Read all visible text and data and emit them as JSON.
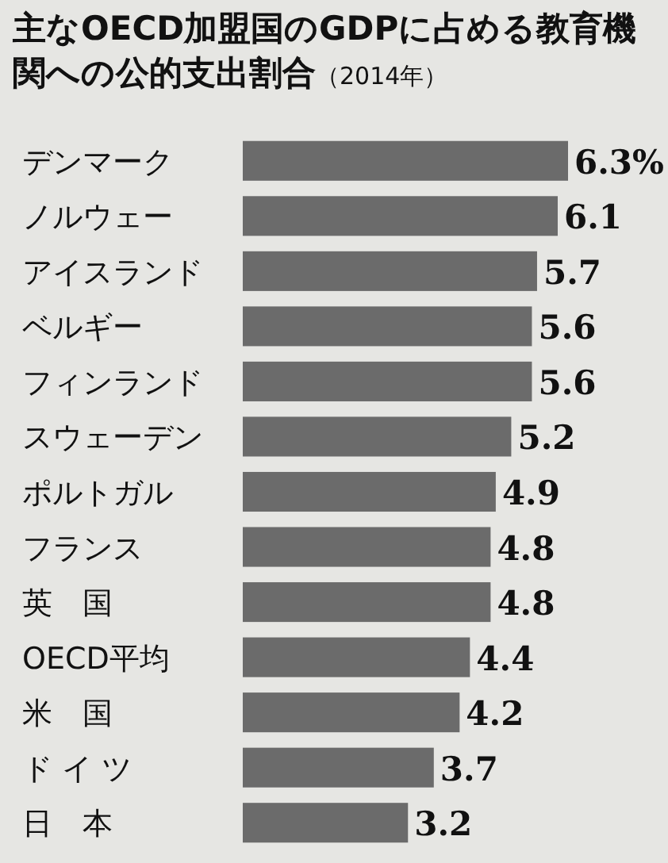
{
  "chart_data": {
    "type": "bar",
    "orientation": "horizontal",
    "title": "主なOECD加盟国のGDPに占める教育機関への公的支出割合",
    "subtitle": "（2014年）",
    "categories": [
      "デンマーク",
      "ノルウェー",
      "アイスランド",
      "ベルギー",
      "フィンランド",
      "スウェーデン",
      "ポルトガル",
      "フランス",
      "英　国",
      "OECD平均",
      "米　国",
      "ド イ ツ",
      "日　本"
    ],
    "values": [
      6.3,
      6.1,
      5.7,
      5.6,
      5.6,
      5.2,
      4.9,
      4.8,
      4.8,
      4.4,
      4.2,
      3.7,
      3.2
    ],
    "value_labels": [
      "6.3%",
      "6.1",
      "5.7",
      "5.6",
      "5.6",
      "5.2",
      "4.9",
      "4.8",
      "4.8",
      "4.4",
      "4.2",
      "3.7",
      "3.2"
    ],
    "color": "#6b6b6b"
  }
}
